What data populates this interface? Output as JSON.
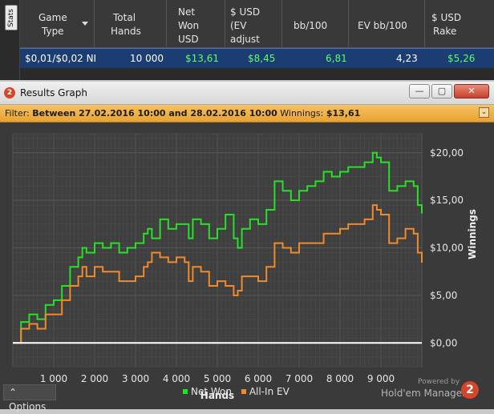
{
  "stats": {
    "tab_label": "Stats",
    "headers": {
      "game_type": [
        "Game",
        "Type"
      ],
      "total_hands": [
        "Total",
        "Hands"
      ],
      "net_won": [
        "Net",
        "Won",
        "USD"
      ],
      "ev": [
        "$ USD",
        "(EV",
        "adjust"
      ],
      "bb100": [
        "bb/100"
      ],
      "ev_bb100": [
        "EV bb/100"
      ],
      "rake": [
        "$ USD",
        "Rake"
      ]
    },
    "row": {
      "game_type": "$0,01/$0,02 NI",
      "total_hands": "10 000",
      "net_won": "$13,61",
      "ev": "$8,45",
      "bb100": "6,81",
      "ev_bb100": "4,23",
      "rake": "$5,26"
    }
  },
  "window": {
    "icon": "2",
    "title": "Results Graph",
    "buttons": {
      "minimize": "—",
      "restore": "▢",
      "close": "✕"
    }
  },
  "filter": {
    "label": "Filter:",
    "range": "Between 27.02.2016 10:00 and 28.02.2016 10:00",
    "winnings_label": "Winnings:",
    "winnings_value": "$13,61"
  },
  "options_label": "Options",
  "branding": {
    "powered_by": "Powered by",
    "name": "Hold'em Manager",
    "logo": "2"
  },
  "colors": {
    "net_won": "#28e028",
    "all_in_ev": "#f08a2c",
    "zero_line": "#ffffff",
    "accent_filter": "#f0b040",
    "selected_row": "#1c3d72"
  },
  "chart_data": {
    "type": "line",
    "xlabel": "Hands",
    "ylabel": "Winnings",
    "x_ticks": [
      "1 000",
      "2 000",
      "3 000",
      "4 000",
      "5 000",
      "6 000",
      "7 000",
      "8 000",
      "9 000"
    ],
    "x_tick_values": [
      1000,
      2000,
      3000,
      4000,
      5000,
      6000,
      7000,
      8000,
      9000
    ],
    "y_ticks": [
      "$0,00",
      "$5,00",
      "$10,00",
      "$15,00",
      "$20,00"
    ],
    "y_tick_values": [
      0,
      5,
      10,
      15,
      20
    ],
    "xlim": [
      0,
      10000
    ],
    "ylim": [
      -2.5,
      22
    ],
    "grid": true,
    "legend_position": "bottom",
    "series": [
      {
        "name": "Net Won",
        "color": "#28e028",
        "x": [
          0,
          200,
          400,
          600,
          800,
          1000,
          1200,
          1400,
          1600,
          1700,
          1800,
          2000,
          2200,
          2400,
          2600,
          2800,
          3000,
          3200,
          3300,
          3400,
          3600,
          3800,
          4000,
          4200,
          4300,
          4400,
          4600,
          4800,
          5000,
          5200,
          5400,
          5500,
          5600,
          5800,
          6000,
          6200,
          6400,
          6600,
          6800,
          7000,
          7200,
          7400,
          7600,
          7800,
          8000,
          8200,
          8400,
          8600,
          8800,
          8900,
          9000,
          9200,
          9400,
          9600,
          9800,
          9900,
          10000
        ],
        "y": [
          0,
          2.2,
          3,
          2.5,
          4,
          4.5,
          6,
          8,
          9,
          10,
          9.5,
          10.5,
          10,
          10.5,
          9.5,
          10,
          10.5,
          11.5,
          12,
          11,
          13,
          12,
          12.5,
          12.5,
          11,
          13,
          12.5,
          11,
          12,
          13.5,
          11,
          10,
          12,
          13,
          12.5,
          14,
          17,
          16,
          15,
          16,
          16.5,
          17,
          18,
          17.5,
          18,
          18.5,
          18.5,
          19,
          20,
          19.5,
          19,
          16,
          16.5,
          17,
          16.5,
          14.5,
          13.61
        ]
      },
      {
        "name": "All-In EV",
        "color": "#f08a2c",
        "x": [
          0,
          200,
          400,
          600,
          800,
          1000,
          1200,
          1400,
          1600,
          1700,
          1800,
          2000,
          2200,
          2400,
          2600,
          2800,
          3000,
          3200,
          3300,
          3400,
          3600,
          3800,
          4000,
          4200,
          4300,
          4400,
          4600,
          4800,
          5000,
          5200,
          5400,
          5500,
          5600,
          5800,
          6000,
          6200,
          6400,
          6600,
          6800,
          7000,
          7200,
          7400,
          7600,
          7800,
          8000,
          8200,
          8400,
          8600,
          8800,
          8900,
          9000,
          9200,
          9400,
          9600,
          9800,
          9900,
          10000
        ],
        "y": [
          0,
          1.5,
          2,
          1.5,
          3,
          3,
          4.5,
          6,
          7,
          8,
          7,
          8,
          7.5,
          7.5,
          6.5,
          6.5,
          7,
          8,
          8.5,
          9.5,
          9,
          8.5,
          9,
          8.5,
          6.5,
          8,
          7.5,
          6,
          6.5,
          6,
          5,
          5.5,
          7,
          7,
          6.5,
          8,
          10.5,
          10,
          9.5,
          10.5,
          10.5,
          10.5,
          11.5,
          11.5,
          12,
          12.5,
          12.5,
          13,
          14.5,
          14,
          13.5,
          10.5,
          11,
          12,
          11.5,
          9.5,
          8.45
        ]
      }
    ]
  }
}
